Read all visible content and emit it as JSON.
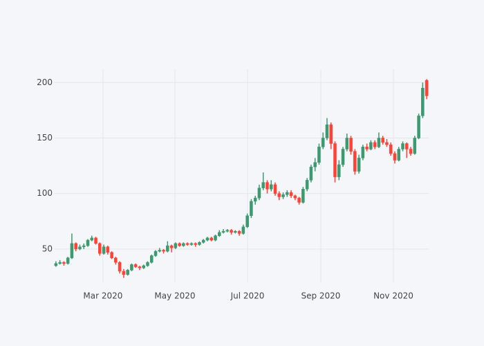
{
  "chart_data": {
    "type": "candlestick",
    "increasing_color": "#3d9970",
    "decreasing_color": "#ff4136",
    "open": [
      35,
      37,
      38,
      37,
      42,
      55,
      50,
      52,
      53,
      58,
      60,
      55,
      46,
      52,
      47,
      42,
      38,
      30,
      27,
      31,
      36,
      34,
      33,
      35,
      38,
      44,
      48,
      49,
      48,
      53,
      51,
      55,
      53,
      55,
      54,
      55,
      54,
      56,
      58,
      60,
      58,
      62,
      65,
      66,
      67,
      65,
      66,
      64,
      70,
      80,
      93,
      96,
      105,
      110,
      104,
      108,
      100,
      97,
      99,
      101,
      98,
      96,
      92,
      104,
      112,
      124,
      128,
      142,
      150,
      162,
      145,
      115,
      126,
      140,
      150,
      138,
      120,
      132,
      142,
      140,
      146,
      142,
      150,
      146,
      144,
      136,
      130,
      140,
      145,
      140,
      136,
      150,
      170,
      202
    ],
    "high": [
      39,
      40,
      39,
      43,
      64,
      56,
      54,
      55,
      59,
      62,
      61,
      56,
      54,
      53,
      48,
      43,
      39,
      32,
      32,
      37,
      37,
      35,
      36,
      39,
      45,
      49,
      51,
      50,
      57,
      54,
      56,
      56,
      56,
      56,
      56,
      56,
      57,
      59,
      61,
      61,
      63,
      67,
      68,
      68,
      68,
      67,
      67,
      72,
      82,
      95,
      98,
      108,
      119,
      112,
      112,
      110,
      102,
      101,
      103,
      103,
      99,
      97,
      106,
      114,
      126,
      132,
      145,
      155,
      168,
      164,
      147,
      130,
      142,
      154,
      152,
      140,
      135,
      144,
      145,
      148,
      148,
      155,
      152,
      149,
      146,
      138,
      142,
      147,
      146,
      142,
      152,
      172,
      200,
      203
    ],
    "low": [
      34,
      36,
      35,
      36,
      41,
      48,
      49,
      50,
      52,
      57,
      54,
      44,
      45,
      45,
      41,
      36,
      28,
      24,
      26,
      30,
      33,
      31,
      32,
      34,
      37,
      43,
      47,
      46,
      47,
      47,
      50,
      52,
      52,
      53,
      53,
      52,
      53,
      55,
      57,
      57,
      57,
      61,
      64,
      65,
      63,
      64,
      62,
      63,
      69,
      78,
      90,
      94,
      103,
      100,
      102,
      98,
      94,
      95,
      97,
      96,
      94,
      90,
      91,
      102,
      110,
      120,
      126,
      140,
      148,
      140,
      110,
      112,
      124,
      138,
      135,
      117,
      118,
      130,
      138,
      139,
      140,
      141,
      144,
      142,
      134,
      127,
      129,
      138,
      132,
      134,
      135,
      149,
      168,
      185
    ],
    "close": [
      37,
      38,
      37,
      42,
      55,
      50,
      52,
      53,
      58,
      60,
      55,
      46,
      52,
      47,
      42,
      38,
      30,
      27,
      31,
      36,
      34,
      33,
      35,
      38,
      44,
      48,
      49,
      48,
      53,
      51,
      55,
      53,
      55,
      54,
      55,
      54,
      56,
      58,
      60,
      58,
      62,
      65,
      66,
      67,
      65,
      66,
      64,
      70,
      80,
      93,
      96,
      105,
      110,
      104,
      108,
      100,
      97,
      99,
      101,
      98,
      96,
      92,
      104,
      112,
      124,
      128,
      142,
      150,
      162,
      145,
      115,
      126,
      140,
      150,
      138,
      120,
      132,
      142,
      140,
      146,
      142,
      150,
      146,
      144,
      136,
      130,
      140,
      145,
      140,
      136,
      150,
      170,
      195,
      188
    ],
    "xlim": [
      -0.5,
      93.5
    ],
    "xticks": [
      {
        "value": 11.8,
        "label": "Mar 2020"
      },
      {
        "value": 29.85,
        "label": "May 2020"
      },
      {
        "value": 48.06,
        "label": "Jul 2020"
      },
      {
        "value": 66.44,
        "label": "Sep 2020"
      },
      {
        "value": 84.65,
        "label": "Nov 2020"
      }
    ],
    "ylim": [
      20,
      212
    ],
    "yticks": [
      50,
      100,
      150,
      200
    ],
    "grid": true
  }
}
